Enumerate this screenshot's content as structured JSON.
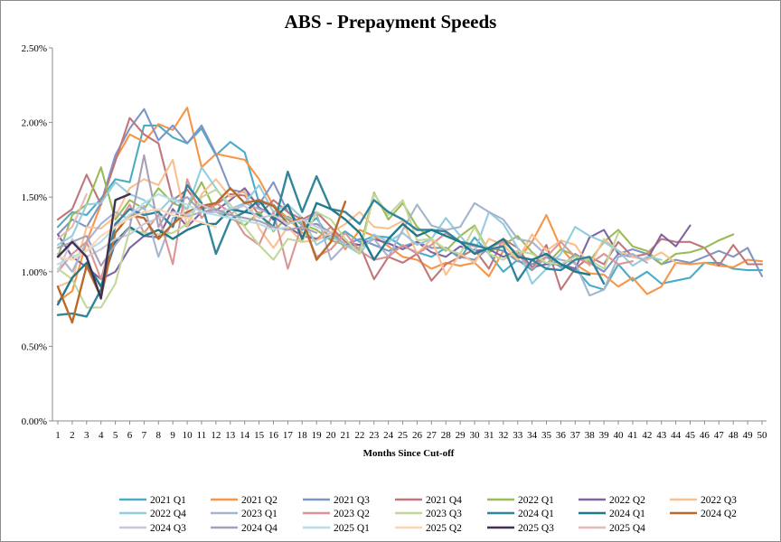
{
  "chart_data": {
    "type": "line",
    "title": "ABS - Prepayment Speeds",
    "xlabel": "Months Since Cut-off",
    "ylabel": "",
    "x": [
      1,
      2,
      3,
      4,
      5,
      6,
      7,
      8,
      9,
      10,
      11,
      12,
      13,
      14,
      15,
      16,
      17,
      18,
      19,
      20,
      21,
      22,
      23,
      24,
      25,
      26,
      27,
      28,
      29,
      30,
      31,
      32,
      33,
      34,
      35,
      36,
      37,
      38,
      39,
      40,
      41,
      42,
      43,
      44,
      45,
      46,
      47,
      48,
      49,
      50
    ],
    "ylim": [
      0,
      2.5
    ],
    "yticks": [
      "0.00%",
      "0.50%",
      "1.00%",
      "1.50%",
      "2.00%",
      "2.50%"
    ],
    "grid": "none",
    "legend_position": "bottom",
    "series": [
      {
        "name": "2021 Q1",
        "color": "#4bacc6",
        "values": [
          1.3,
          1.4,
          1.38,
          1.49,
          1.62,
          1.6,
          1.98,
          1.98,
          1.9,
          1.86,
          1.96,
          1.78,
          1.87,
          1.8,
          1.46,
          1.45,
          1.35,
          1.28,
          1.36,
          1.21,
          1.27,
          1.2,
          1.24,
          1.23,
          1.17,
          1.13,
          1.1,
          1.16,
          1.09,
          1.23,
          1.12,
          1.0,
          1.08,
          1.01,
          1.1,
          1.05,
          1.02,
          0.91,
          0.88,
          1.05,
          0.94,
          1.0,
          0.92,
          0.94,
          0.96,
          1.06,
          1.06,
          1.02,
          1.01,
          1.01
        ]
      },
      {
        "name": "2021 Q2",
        "color": "#f79646",
        "values": [
          0.8,
          0.87,
          1.2,
          1.45,
          1.75,
          1.92,
          1.87,
          1.99,
          1.95,
          2.1,
          1.7,
          1.79,
          1.77,
          1.75,
          1.62,
          1.44,
          1.36,
          1.26,
          1.22,
          1.3,
          1.15,
          1.28,
          1.24,
          1.17,
          1.1,
          1.08,
          1.02,
          1.06,
          1.04,
          1.06,
          0.97,
          1.14,
          1.08,
          1.2,
          1.38,
          1.16,
          1.05,
          0.99,
          0.98,
          0.9,
          0.96,
          0.85,
          0.9,
          1.06,
          1.05,
          1.06,
          1.04,
          1.03,
          1.08,
          1.07
        ]
      },
      {
        "name": "2021 Q3",
        "color": "#7f96c4",
        "values": [
          1.25,
          1.35,
          1.3,
          1.46,
          1.78,
          1.96,
          2.09,
          1.88,
          1.98,
          1.86,
          1.98,
          1.79,
          1.55,
          1.53,
          1.45,
          1.6,
          1.4,
          1.31,
          1.32,
          1.26,
          1.18,
          1.22,
          1.18,
          1.14,
          1.17,
          1.2,
          1.16,
          1.16,
          1.1,
          1.08,
          1.16,
          1.14,
          1.07,
          1.05,
          1.1,
          1.03,
          1.12,
          1.06,
          1.0,
          1.12,
          1.15,
          1.12,
          1.05,
          1.08,
          1.06,
          1.1,
          1.14,
          1.1,
          1.16,
          0.97
        ]
      },
      {
        "name": "2021 Q4",
        "color": "#c0767a",
        "values": [
          1.35,
          1.42,
          1.65,
          1.45,
          1.74,
          2.03,
          1.92,
          1.86,
          1.48,
          1.55,
          1.42,
          1.45,
          1.52,
          1.51,
          1.38,
          1.48,
          1.4,
          1.35,
          1.4,
          1.3,
          1.2,
          1.18,
          0.95,
          1.1,
          1.06,
          1.12,
          0.94,
          1.05,
          1.1,
          1.15,
          1.02,
          1.22,
          1.16,
          1.02,
          1.18,
          0.88,
          1.02,
          1.1,
          1.05,
          1.2,
          1.1,
          1.12,
          1.22,
          1.2,
          1.2,
          1.16,
          1.04,
          1.18,
          1.05,
          1.05
        ]
      },
      {
        "name": "2022 Q1",
        "color": "#9bbb59",
        "values": [
          1.1,
          1.38,
          1.45,
          1.7,
          1.35,
          1.48,
          1.42,
          1.56,
          1.46,
          1.42,
          1.6,
          1.4,
          1.36,
          1.31,
          1.4,
          1.27,
          1.37,
          1.32,
          1.28,
          1.21,
          1.18,
          1.15,
          1.53,
          1.35,
          1.46,
          1.3,
          1.22,
          1.14,
          1.24,
          1.31,
          1.13,
          1.18,
          1.24,
          1.13,
          1.05,
          1.15,
          1.11,
          1.07,
          1.2,
          1.28,
          1.17,
          1.14,
          1.05,
          1.12,
          1.13,
          1.16,
          1.21,
          1.25,
          null,
          null
        ]
      },
      {
        "name": "2022 Q2",
        "color": "#8064a2",
        "values": [
          1.25,
          1.1,
          1.03,
          0.95,
          1.0,
          1.16,
          1.24,
          1.23,
          1.42,
          1.3,
          1.4,
          1.41,
          1.48,
          1.56,
          1.43,
          1.37,
          1.3,
          1.24,
          1.22,
          1.24,
          1.18,
          1.18,
          1.22,
          1.19,
          1.15,
          1.2,
          1.13,
          1.1,
          1.17,
          1.14,
          1.15,
          1.1,
          1.14,
          1.03,
          1.05,
          1.05,
          1.02,
          1.23,
          1.28,
          1.12,
          1.1,
          1.08,
          1.25,
          1.17,
          1.31,
          null,
          null,
          null,
          null,
          null
        ]
      },
      {
        "name": "2022 Q3",
        "color": "#fac090",
        "values": [
          0.9,
          0.94,
          1.3,
          1.29,
          1.37,
          1.56,
          1.62,
          1.58,
          1.75,
          1.3,
          1.52,
          1.62,
          1.5,
          1.54,
          1.29,
          1.16,
          1.3,
          1.2,
          1.21,
          1.26,
          1.32,
          1.4,
          1.3,
          1.29,
          1.34,
          1.12,
          1.22,
          0.98,
          1.12,
          1.06,
          1.22,
          1.18,
          1.08,
          1.25,
          1.14,
          1.21,
          1.18,
          1.04,
          1.22,
          1.14,
          1.1,
          1.08,
          1.13,
          1.06,
          null,
          null,
          null,
          null,
          null,
          null
        ]
      },
      {
        "name": "2022 Q4",
        "color": "#93cddd",
        "values": [
          1.18,
          1.24,
          1.45,
          1.46,
          1.6,
          1.52,
          1.48,
          1.4,
          1.5,
          1.42,
          1.7,
          1.56,
          1.42,
          1.46,
          1.58,
          1.4,
          1.45,
          1.36,
          1.18,
          1.24,
          1.18,
          1.12,
          1.25,
          1.2,
          1.26,
          1.18,
          1.22,
          1.36,
          1.24,
          1.13,
          1.4,
          1.32,
          1.16,
          0.92,
          1.02,
          1.12,
          1.3,
          1.24,
          1.2,
          1.14,
          1.04,
          1.1,
          1.08,
          null,
          null,
          null,
          null,
          null,
          null,
          null
        ]
      },
      {
        "name": "2023 Q1",
        "color": "#a5b5d0",
        "values": [
          1.12,
          1.0,
          1.2,
          1.32,
          1.4,
          1.35,
          1.44,
          1.1,
          1.36,
          1.37,
          1.4,
          1.4,
          1.38,
          1.46,
          1.42,
          1.38,
          1.36,
          1.33,
          1.39,
          1.08,
          1.18,
          1.16,
          1.22,
          1.1,
          1.28,
          1.45,
          1.31,
          1.28,
          1.3,
          1.46,
          1.4,
          1.35,
          1.22,
          1.2,
          1.11,
          1.08,
          1.06,
          0.84,
          0.88,
          1.1,
          1.12,
          1.06,
          null,
          null,
          null,
          null,
          null,
          null,
          null,
          null
        ]
      },
      {
        "name": "2023 Q2",
        "color": "#d99694",
        "values": [
          1.0,
          1.12,
          1.2,
          0.95,
          1.3,
          1.45,
          1.26,
          1.38,
          1.05,
          1.62,
          1.36,
          1.46,
          1.4,
          1.25,
          1.18,
          1.4,
          1.02,
          1.32,
          1.1,
          1.15,
          1.26,
          1.14,
          1.08,
          1.1,
          1.18,
          1.12,
          1.18,
          1.26,
          1.2,
          1.17,
          1.16,
          1.2,
          1.12,
          1.02,
          1.1,
          1.2,
          1.1,
          1.05,
          1.12,
          1.05,
          1.07,
          null,
          null,
          null,
          null,
          null,
          null,
          null,
          null,
          null
        ]
      },
      {
        "name": "2023 Q3",
        "color": "#c4d79b",
        "values": [
          1.02,
          0.95,
          0.76,
          0.76,
          0.92,
          1.28,
          1.26,
          1.25,
          1.26,
          1.32,
          1.5,
          1.55,
          1.45,
          1.3,
          1.18,
          1.08,
          1.22,
          1.2,
          1.4,
          1.35,
          1.22,
          1.12,
          1.52,
          1.38,
          1.48,
          1.21,
          1.22,
          1.15,
          1.12,
          1.3,
          1.12,
          1.08,
          1.14,
          1.12,
          1.06,
          1.05,
          1.1,
          1.08,
          1.02,
          1.26,
          null,
          null,
          null,
          null,
          null,
          null,
          null,
          null,
          null,
          null
        ]
      },
      {
        "name": "2024 Q1",
        "color": "#31859c",
        "values": [
          0.71,
          0.72,
          0.7,
          0.88,
          1.32,
          1.42,
          1.38,
          1.4,
          1.3,
          1.58,
          1.46,
          1.12,
          1.35,
          1.4,
          1.38,
          1.3,
          1.67,
          1.4,
          1.64,
          1.42,
          1.4,
          1.32,
          1.48,
          1.4,
          1.35,
          1.28,
          1.28,
          1.27,
          1.2,
          1.18,
          1.15,
          1.17,
          0.94,
          1.08,
          1.02,
          1.01,
          1.08,
          1.1,
          0.92,
          null,
          null,
          null,
          null,
          null,
          null,
          null,
          null,
          null,
          null,
          null
        ]
      },
      {
        "name": "2024 Q1",
        "color": "#1f7a8c",
        "values": [
          0.78,
          0.96,
          1.06,
          0.9,
          1.2,
          1.3,
          1.24,
          1.28,
          1.22,
          1.28,
          1.32,
          1.32,
          1.42,
          1.4,
          1.48,
          1.35,
          1.45,
          1.22,
          1.46,
          1.42,
          1.35,
          1.26,
          1.08,
          1.22,
          1.32,
          1.24,
          1.28,
          1.24,
          1.2,
          1.12,
          1.16,
          1.22,
          1.1,
          1.08,
          1.12,
          1.05,
          1.0,
          0.98,
          null,
          null,
          null,
          null,
          null,
          null,
          null,
          null,
          null,
          null,
          null,
          null
        ]
      },
      {
        "name": "2024 Q2",
        "color": "#b96a2b",
        "values": [
          0.9,
          0.66,
          1.04,
          0.83,
          1.26,
          1.38,
          1.36,
          1.22,
          1.32,
          1.4,
          1.44,
          1.46,
          1.56,
          1.46,
          1.48,
          1.44,
          1.32,
          1.36,
          1.08,
          1.2,
          1.47,
          null,
          null,
          null,
          null,
          null,
          null,
          null,
          null,
          null,
          null,
          null,
          null,
          null,
          null,
          null,
          null,
          null,
          null,
          null,
          null,
          null,
          null,
          null,
          null,
          null,
          null,
          null,
          null,
          null
        ]
      },
      {
        "name": "2024 Q3",
        "color": "#c6c9d9",
        "values": [
          1.0,
          1.22,
          1.1,
          1.15,
          1.22,
          1.25,
          1.32,
          1.36,
          1.4,
          1.38,
          1.45,
          1.4,
          1.42,
          1.44,
          1.36,
          1.38,
          1.32,
          1.35,
          1.3,
          1.26,
          null,
          null,
          null,
          null,
          null,
          null,
          null,
          null,
          null,
          null,
          null,
          null,
          null,
          null,
          null,
          null,
          null,
          null,
          null,
          null,
          null,
          null,
          null,
          null,
          null,
          null,
          null,
          null,
          null,
          null
        ]
      },
      {
        "name": "2024 Q4",
        "color": "#a6a0b8",
        "values": [
          1.16,
          1.2,
          1.24,
          1.04,
          1.18,
          1.3,
          1.78,
          1.3,
          1.46,
          1.5,
          1.4,
          1.42,
          1.38,
          1.36,
          1.34,
          1.3,
          1.28,
          1.3,
          1.26,
          null,
          null,
          null,
          null,
          null,
          null,
          null,
          null,
          null,
          null,
          null,
          null,
          null,
          null,
          null,
          null,
          null,
          null,
          null,
          null,
          null,
          null,
          null,
          null,
          null,
          null,
          null,
          null,
          null,
          null,
          null
        ]
      },
      {
        "name": "2025 Q1",
        "color": "#b7dde8",
        "values": [
          1.05,
          1.1,
          1.14,
          1.2,
          1.3,
          1.38,
          1.46,
          1.52,
          1.48,
          1.45,
          1.4,
          1.38,
          1.36,
          1.34,
          1.32,
          1.28,
          1.3,
          null,
          null,
          null,
          null,
          null,
          null,
          null,
          null,
          null,
          null,
          null,
          null,
          null,
          null,
          null,
          null,
          null,
          null,
          null,
          null,
          null,
          null,
          null,
          null,
          null,
          null,
          null,
          null,
          null,
          null,
          null,
          null,
          null
        ]
      },
      {
        "name": "2025 Q2",
        "color": "#fcd5b4",
        "values": [
          1.1,
          1.08,
          1.14,
          1.24,
          1.3,
          1.36,
          1.4,
          1.42,
          1.38,
          1.36,
          1.33,
          1.3,
          null,
          null,
          null,
          null,
          null,
          null,
          null,
          null,
          null,
          null,
          null,
          null,
          null,
          null,
          null,
          null,
          null,
          null,
          null,
          null,
          null,
          null,
          null,
          null,
          null,
          null,
          null,
          null,
          null,
          null,
          null,
          null,
          null,
          null,
          null,
          null,
          null,
          null
        ]
      },
      {
        "name": "2025 Q3",
        "color": "#403152",
        "values": [
          1.1,
          1.2,
          1.1,
          0.82,
          1.48,
          1.52,
          null,
          null,
          null,
          null,
          null,
          null,
          null,
          null,
          null,
          null,
          null,
          null,
          null,
          null,
          null,
          null,
          null,
          null,
          null,
          null,
          null,
          null,
          null,
          null,
          null,
          null,
          null,
          null,
          null,
          null,
          null,
          null,
          null,
          null,
          null,
          null,
          null,
          null,
          null,
          null,
          null,
          null,
          null,
          null
        ]
      },
      {
        "name": "2025 Q4",
        "color": "#e6b9b8",
        "values": [
          1.22,
          1.3,
          1.52,
          null,
          null,
          null,
          null,
          null,
          null,
          null,
          null,
          null,
          null,
          null,
          null,
          null,
          null,
          null,
          null,
          null,
          null,
          null,
          null,
          null,
          null,
          null,
          null,
          null,
          null,
          null,
          null,
          null,
          null,
          null,
          null,
          null,
          null,
          null,
          null,
          null,
          null,
          null,
          null,
          null,
          null,
          null,
          null,
          null,
          null,
          null
        ]
      }
    ]
  }
}
